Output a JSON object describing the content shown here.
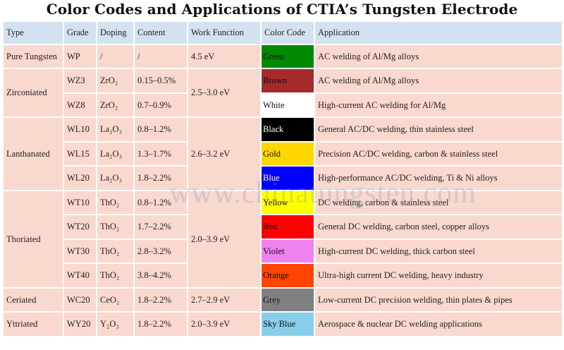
{
  "title": "Color Codes and Applications of CTIA’s Tungsten Electrode",
  "headers": [
    "Type",
    "Grade",
    "Doping",
    "Content",
    "Work Function",
    "Color Code",
    "Application"
  ],
  "groups": [
    {
      "type": "Pure Tungsten",
      "work_function": "4.5 eV",
      "rows": [
        {
          "grade": "WP",
          "doping": "/",
          "content": "/",
          "color_name": "Green",
          "color_hex": "#008a00",
          "text_color": "#111111",
          "application": "AC welding of Al/Mg alloys"
        }
      ]
    },
    {
      "type": "Zirconiated",
      "work_function": "2.5–3.0 eV",
      "rows": [
        {
          "grade": "WZ3",
          "doping": "ZrO₂",
          "content": "0.15–0.5%",
          "color_name": "Brown",
          "color_hex": "#a52a2a",
          "text_color": "#111111",
          "application": "AC welding of Al/Mg alloys"
        },
        {
          "grade": "WZ8",
          "doping": "ZrO₂",
          "content": "0.7–0.9%",
          "color_name": "White",
          "color_hex": "#ffffff",
          "text_color": "#111111",
          "application": "High-current AC welding for Al/Mg"
        }
      ]
    },
    {
      "type": "Lanthanated",
      "work_function": "2.6–3.2 eV",
      "rows": [
        {
          "grade": "WL10",
          "doping": "La₂O₃",
          "content": "0.8–1.2%",
          "color_name": "Black",
          "color_hex": "#000000",
          "text_color": "#ffffff",
          "application": "General AC/DC welding, thin stainless steel"
        },
        {
          "grade": "WL15",
          "doping": "La₂O₃",
          "content": "1.3–1.7%",
          "color_name": "Gold",
          "color_hex": "#ffd700",
          "text_color": "#111111",
          "application": "Precision AC/DC welding, carbon & stainless steel"
        },
        {
          "grade": "WL20",
          "doping": "La₂O₃",
          "content": "1.8–2.2%",
          "color_name": "Blue",
          "color_hex": "#0000ff",
          "text_color": "#ffffff",
          "application": "High-performance AC/DC welding, Ti & Ni alloys"
        }
      ]
    },
    {
      "type": "Thoriated",
      "work_function": "2.0–3.9 eV",
      "rows": [
        {
          "grade": "WT10",
          "doping": "ThO₂",
          "content": "0.8–1.2%",
          "color_name": "Yellow",
          "color_hex": "#ffff00",
          "text_color": "#111111",
          "application": "DC welding, carbon & stainless steel"
        },
        {
          "grade": "WT20",
          "doping": "ThO₂",
          "content": "1.7–2.2%",
          "color_name": "Red",
          "color_hex": "#ff0000",
          "text_color": "#111111",
          "application": "General DC welding, carbon steel, copper alloys"
        },
        {
          "grade": "WT30",
          "doping": "ThO₂",
          "content": "2.8–3.2%",
          "color_name": "Violet",
          "color_hex": "#ee82ee",
          "text_color": "#111111",
          "application": "High-current DC welding, thick carbon steel"
        },
        {
          "grade": "WT40",
          "doping": "ThO₂",
          "content": "3.8–4.2%",
          "color_name": "Orange",
          "color_hex": "#ff4500",
          "text_color": "#111111",
          "application": "Ultra-high current DC welding, heavy industry"
        }
      ]
    },
    {
      "type": "Ceriated",
      "work_function": "2.7–2.9 eV",
      "rows": [
        {
          "grade": "WC20",
          "doping": "CeO₂",
          "content": "1.8–2.2%",
          "color_name": "Grey",
          "color_hex": "#808080",
          "text_color": "#111111",
          "application": "Low-current DC precision welding, thin plates & pipes"
        }
      ]
    },
    {
      "type": "Yttriated",
      "work_function": "2.0–3.9 eV",
      "rows": [
        {
          "grade": "WY20",
          "doping": "Y₂O₃",
          "content": "1.8–2.2%",
          "color_name": "Sky Blue",
          "color_hex": "#87ceeb",
          "text_color": "#111111",
          "application": "Aerospace & nuclear DC welding applications"
        }
      ]
    }
  ],
  "watermark": "www.chinatungsten.com"
}
